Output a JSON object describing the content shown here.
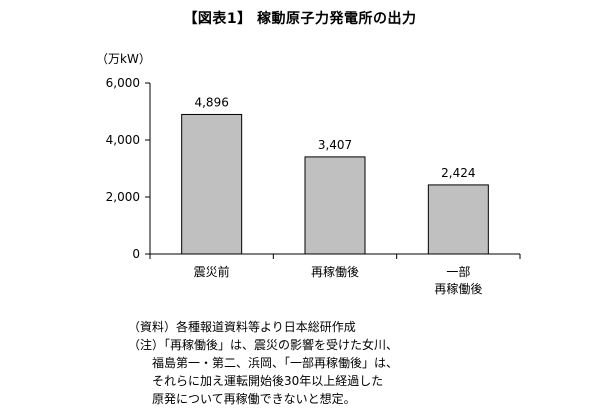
{
  "chart_data": {
    "type": "bar",
    "title": "【図表1】 稼動原子力発電所の出力",
    "ylabel": "（万kW）",
    "ylim": [
      0,
      6000
    ],
    "yticks": [
      {
        "value": 0,
        "label": "0"
      },
      {
        "value": 2000,
        "label": "2,000"
      },
      {
        "value": 4000,
        "label": "4,000"
      },
      {
        "value": 6000,
        "label": "6,000"
      }
    ],
    "categories": [
      [
        "震災前"
      ],
      [
        "再稼働後"
      ],
      [
        "一部",
        "再稼働後"
      ]
    ],
    "values": [
      4896,
      3407,
      2424
    ],
    "value_labels": [
      "4,896",
      "3,407",
      "2,424"
    ],
    "bar_color": "#c0c0c0",
    "grid": false,
    "legend": "none"
  },
  "notes": {
    "source": "（資料）各種報道資料等より日本総研作成",
    "note_lines": [
      "（注）「再稼働後」は、震災の影響を受けた女川、",
      "福島第一・第二、浜岡、「一部再稼働後」は、",
      "それらに加え運転開始後30年以上経過した",
      "原発について再稼働できないと想定。"
    ]
  }
}
